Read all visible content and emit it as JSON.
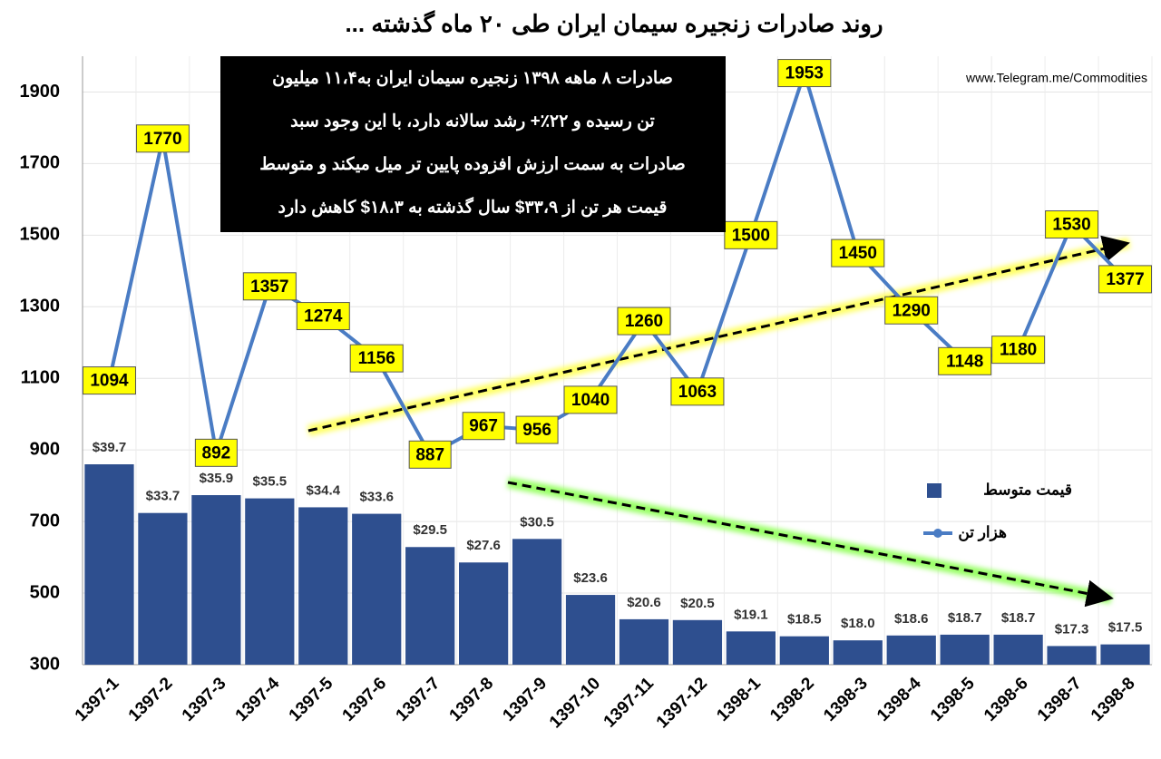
{
  "chart_data": {
    "type": "combo",
    "title": "روند صادرات زنجیره سیمان ایران طی ۲۰ ماه گذشته ...",
    "source": "www.Telegram.me/Commodities",
    "annotation": [
      "صادرات ۸ ماهه ۱۳۹۸ زنجیره سیمان ایران به۱۱،۴ میلیون",
      "تن رسیده و ۲۲٪+ رشد سالانه دارد، با این وجود سبد",
      "صادرات به سمت ارزش افزوده پایین تر میل میکند و متوسط",
      "قیمت هر تن از ۳۳،۹$ سال گذشته به ۱۸،۳$ کاهش دارد"
    ],
    "categories": [
      "1397-1",
      "1397-2",
      "1397-3",
      "1397-4",
      "1397-5",
      "1397-6",
      "1397-7",
      "1397-8",
      "1397-9",
      "1397-10",
      "1397-11",
      "1397-12",
      "1398-1",
      "1398-2",
      "1398-3",
      "1398-4",
      "1398-5",
      "1398-6",
      "1398-7",
      "1398-8"
    ],
    "series": [
      {
        "name": "قیمت متوسط",
        "type": "bar",
        "axis": "y2",
        "color": "#2e4f8f",
        "values": [
          39.7,
          33.7,
          35.9,
          35.5,
          34.4,
          33.6,
          29.5,
          27.6,
          30.5,
          23.6,
          20.6,
          20.5,
          19.1,
          18.5,
          18.0,
          18.6,
          18.7,
          18.7,
          17.3,
          17.5
        ],
        "value_labels": [
          "$39.7",
          "$33.7",
          "$35.9",
          "$35.5",
          "$34.4",
          "$33.6",
          "$29.5",
          "$27.6",
          "$30.5",
          "$23.6",
          "$20.6",
          "$20.5",
          "$19.1",
          "$18.5",
          "$18.0",
          "$18.6",
          "$18.7",
          "$18.7",
          "$17.3",
          "$17.5"
        ]
      },
      {
        "name": "هزار تن",
        "type": "line",
        "color": "#4a7cc4",
        "values": [
          1094,
          1770,
          892,
          1357,
          1274,
          1156,
          887,
          967,
          956,
          1040,
          1260,
          1063,
          1500,
          1953,
          1450,
          1290,
          1148,
          1180,
          1530,
          1377
        ]
      }
    ],
    "ylim": [
      300,
      2000
    ],
    "yticks": [
      300,
      500,
      700,
      900,
      1100,
      1300,
      1500,
      1700,
      1900
    ],
    "y2lim": [
      15,
      90
    ],
    "grid": true
  }
}
